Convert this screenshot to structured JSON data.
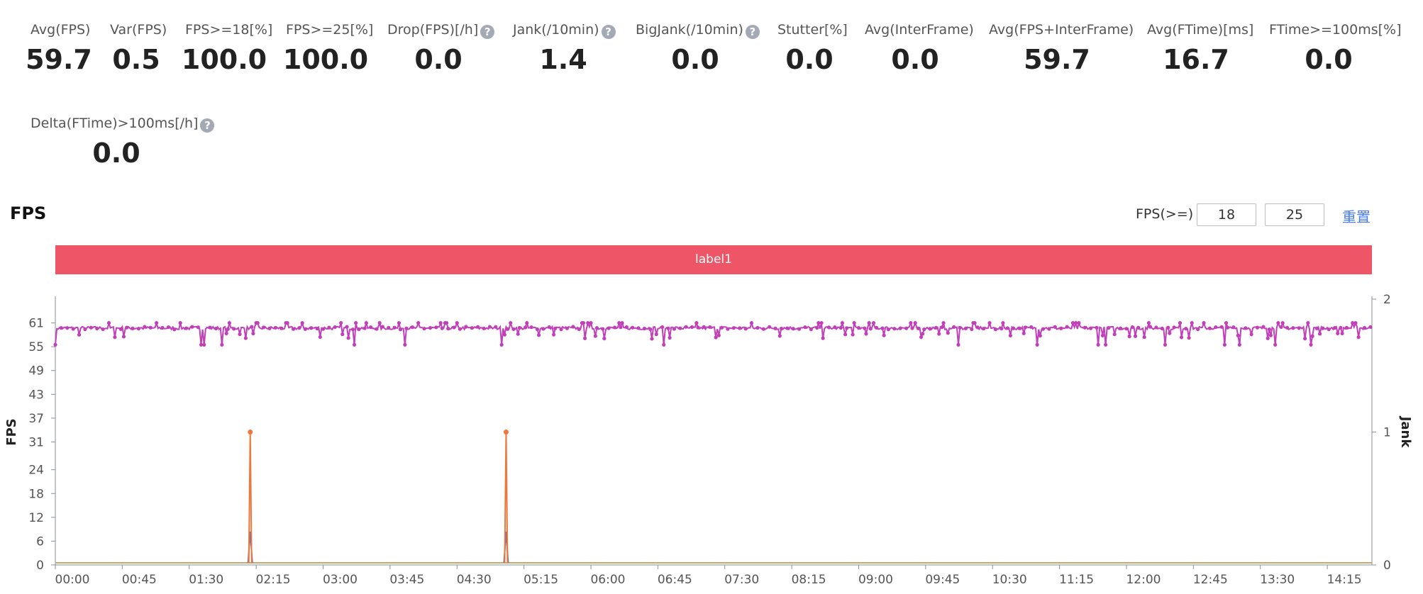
{
  "stats": [
    {
      "label": "Avg(FPS)",
      "value": "59.7",
      "help": false
    },
    {
      "label": "Var(FPS)",
      "value": "0.5",
      "help": false
    },
    {
      "label": "FPS>=18[%]",
      "value": "100.0",
      "help": false
    },
    {
      "label": "FPS>=25[%]",
      "value": "100.0",
      "help": false
    },
    {
      "label": "Drop(FPS)[/h]",
      "value": "0.0",
      "help": true
    },
    {
      "label": "Jank(/10min)",
      "value": "1.4",
      "help": true
    },
    {
      "label": "BigJank(/10min)",
      "value": "0.0",
      "help": true
    },
    {
      "label": "Stutter[%]",
      "value": "0.0",
      "help": false
    },
    {
      "label": "Avg(InterFrame)",
      "value": "0.0",
      "help": false
    },
    {
      "label": "Avg(FPS+InterFrame)",
      "value": "59.7",
      "help": false
    },
    {
      "label": "Avg(FTime)[ms]",
      "value": "16.7",
      "help": false
    },
    {
      "label": "FTime>=100ms[%]",
      "value": "0.0",
      "help": false
    },
    {
      "label": "Delta(FTime)>100ms[/h]",
      "value": "0.0",
      "help": true
    }
  ],
  "help_glyph": "?",
  "section_title": "FPS",
  "fps_threshold": {
    "label": "FPS(>=)",
    "low": "18",
    "high": "25",
    "reset_label": "重置"
  },
  "label_band": "label1",
  "colors": {
    "fps": "#c13fb8",
    "jank": "#f0773a",
    "bigjank": "#5470c6",
    "baseline": "#c9a96b",
    "band": "#ee5667",
    "link": "#4a7cf0"
  },
  "chart_data": {
    "type": "line",
    "x_label": "",
    "y_label": "FPS",
    "y2_label": "Jank",
    "x_ticks": [
      "00:00",
      "00:45",
      "01:30",
      "02:15",
      "03:00",
      "03:45",
      "04:30",
      "05:15",
      "06:00",
      "06:45",
      "07:30",
      "08:15",
      "09:00",
      "09:45",
      "10:30",
      "11:15",
      "12:00",
      "12:45",
      "13:30",
      "14:15"
    ],
    "x_range_seconds": [
      0,
      885
    ],
    "y_ticks": [
      0,
      6,
      12,
      18,
      24,
      31,
      37,
      43,
      49,
      55,
      61
    ],
    "y_range": [
      0,
      67
    ],
    "y2_ticks": [
      0,
      1,
      2
    ],
    "y2_range": [
      0,
      2
    ],
    "series": [
      {
        "values_note": "FPS sampled ~1s, fluctuating 56-61, mean 59.7",
        "mean": 59.7,
        "min": 56,
        "max": 61
      },
      {
        "jank_spikes_seconds": [
          131,
          303
        ],
        "jank_value": 1,
        "bigjank_value": 0.25
      }
    ]
  }
}
